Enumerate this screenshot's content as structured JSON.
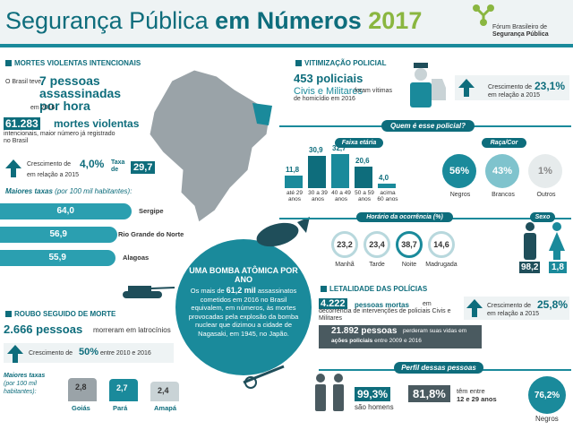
{
  "header": {
    "t1": "Segurança Pública",
    "t2": "em",
    "t3": "Números",
    "t4": "2017",
    "logo1": "Fórum Brasileiro de",
    "logo2": "Segurança Pública"
  },
  "mortes": {
    "section": "MORTES VIOLENTAS INTENCIONAIS",
    "intro": "O Brasil teve",
    "big": "7 pessoas assassinadas por hora",
    "intro2": "em 2016",
    "n": "61.283",
    "n_label": "mortes violentas",
    "n_sub": "intencionais, maior número já registrado no Brasil",
    "growth_label": "Crescimento de",
    "growth": "4,0%",
    "growth_sub": "em relação a 2015",
    "taxa_label": "Taxa de",
    "taxa": "29,7",
    "maiores": "Maiores taxas",
    "maiores_sub": "(por 100 mil habitantes):",
    "bars": [
      {
        "value": "64,0",
        "state": "Sergipe",
        "frac": 0.64
      },
      {
        "value": "56,9",
        "state": "Rio Grande do Norte",
        "frac": 0.569
      },
      {
        "value": "55,9",
        "state": "Alagoas",
        "frac": 0.559
      }
    ]
  },
  "roubo": {
    "section": "ROUBO SEGUIDO DE MORTE",
    "n": "2.666 pessoas",
    "text": "morreram em latrocínios",
    "growth_label": "Crescimento de",
    "growth": "50%",
    "growth_sub": "entre 2010 e 2016",
    "maiores": "Maiores taxas",
    "maiores_sub": "(por 100 mil habitantes):",
    "bars": [
      {
        "value": "2,8",
        "state": "Goiás",
        "frac": 1.0
      },
      {
        "value": "2,7",
        "state": "Pará",
        "frac": 0.96
      },
      {
        "value": "2,4",
        "state": "Amapá",
        "frac": 0.86
      }
    ]
  },
  "bomba": {
    "title": "UMA BOMBA ATÔMICA POR ANO",
    "text1": "Os mais de",
    "n": "61,2 mil",
    "text2": "assassinatos cometidos em 2016 no Brasil equivalem, em números, às mortes provocadas pela explosão da bomba nuclear que dizimou a cidade de Nagasaki, em 1945, no Japão."
  },
  "vitim": {
    "section": "VITIMIZAÇÃO POLICIAL",
    "n": "453 policiais",
    "n2": "Civis e Militares",
    "text": "foram vítimas de homicídio em 2016",
    "growth_label": "Crescimento de",
    "growth": "23,1%",
    "growth_sub": "em relação a 2015",
    "quem": "Quem é esse policial?",
    "faixa": "Faixa etária",
    "raca": "Raça/Cor",
    "ages": [
      {
        "v": "11,8",
        "l": "até 29 anos",
        "f": 0.36
      },
      {
        "v": "30,9",
        "l": "30 a 39 anos",
        "f": 0.94
      },
      {
        "v": "32,7",
        "l": "40 a 49 anos",
        "f": 1.0
      },
      {
        "v": "20,6",
        "l": "50 a 59 anos",
        "f": 0.63
      },
      {
        "v": "4,0",
        "l": "acima 60 anos",
        "f": 0.12
      }
    ],
    "race": [
      {
        "v": "56%",
        "l": "Negros"
      },
      {
        "v": "43%",
        "l": "Brancos"
      },
      {
        "v": "1%",
        "l": "Outros"
      }
    ],
    "horario": "Horário da ocorrência (%)",
    "hours": [
      {
        "v": "23,2",
        "l": "Manhã"
      },
      {
        "v": "23,4",
        "l": "Tarde"
      },
      {
        "v": "38,7",
        "l": "Noite"
      },
      {
        "v": "14,6",
        "l": "Madrugada"
      }
    ],
    "sexo": "Sexo",
    "sex": [
      {
        "v": "98,2"
      },
      {
        "v": "1,8"
      }
    ]
  },
  "letal": {
    "section": "LETALIDADE DAS POLÍCIAS",
    "n": "4.222",
    "n_text": "pessoas mortas",
    "n_sub": "em decorrência de intervenções de policiais Civis e Militares",
    "growth_label": "Crescimento de",
    "growth": "25,8%",
    "growth_sub": "em relação a 2015",
    "n2": "21.892 pessoas",
    "n2_text": "perderam suas vidas em",
    "n2_b": "ações policiais",
    "n2_sub": "entre 2009 e 2016",
    "perfil": "Perfil dessas pessoas",
    "homens": "99,3%",
    "homens_l": "são homens",
    "jovens": "81,8%",
    "jovens_l1": "têm entre",
    "jovens_l2": "12 e 29 anos",
    "negros": "76,2%",
    "negros_l": "Negros"
  }
}
